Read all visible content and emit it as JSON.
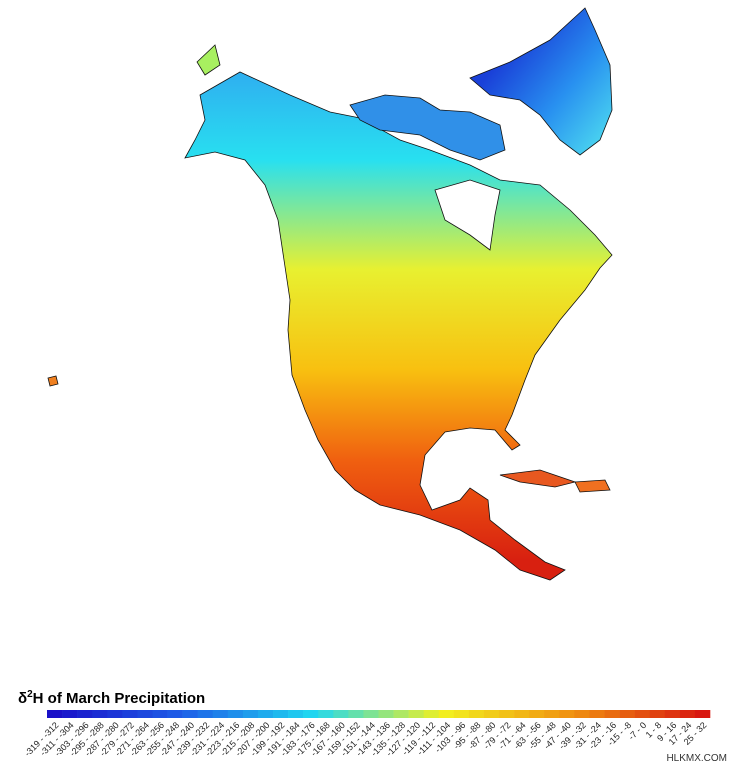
{
  "title": {
    "prefix": "δ",
    "superscript": "2",
    "rest": "H of March Precipitation"
  },
  "legend": {
    "colors": [
      "#1a10c8",
      "#1e60e8",
      "#20d8f0",
      "#f2f020",
      "#f09010",
      "#d81810"
    ],
    "labels": [
      "-319 - -312",
      "-311 - -304",
      "-303 - -296",
      "-295 - -288",
      "-287 - -280",
      "-279 - -272",
      "-271 - -264",
      "-263 - -256",
      "-255 - -248",
      "-247 - -240",
      "-239 - -232",
      "-231 - -224",
      "-223 - -216",
      "-215 - -208",
      "-207 - -200",
      "-199 - -192",
      "-191 - -184",
      "-183 - -176",
      "-175 - -168",
      "-167 - -160",
      "-159 - -152",
      "-151 - -144",
      "-143 - -136",
      "-135 - -128",
      "-127 - -120",
      "-119 - -112",
      "-111 - -104",
      "-103 - -96",
      "-95 - -88",
      "-87 - -80",
      "-79 - -72",
      "-71 - -64",
      "-63 - -56",
      "-55 - -48",
      "-47 - -40",
      "-39 - -32",
      "-31 - -24",
      "-23 - -16",
      "-15 - -8",
      "-7 - 0",
      "1 - 8",
      "9 - 16",
      "17 - 24",
      "25 - 32"
    ]
  },
  "watermark": "HLKMX.COM"
}
